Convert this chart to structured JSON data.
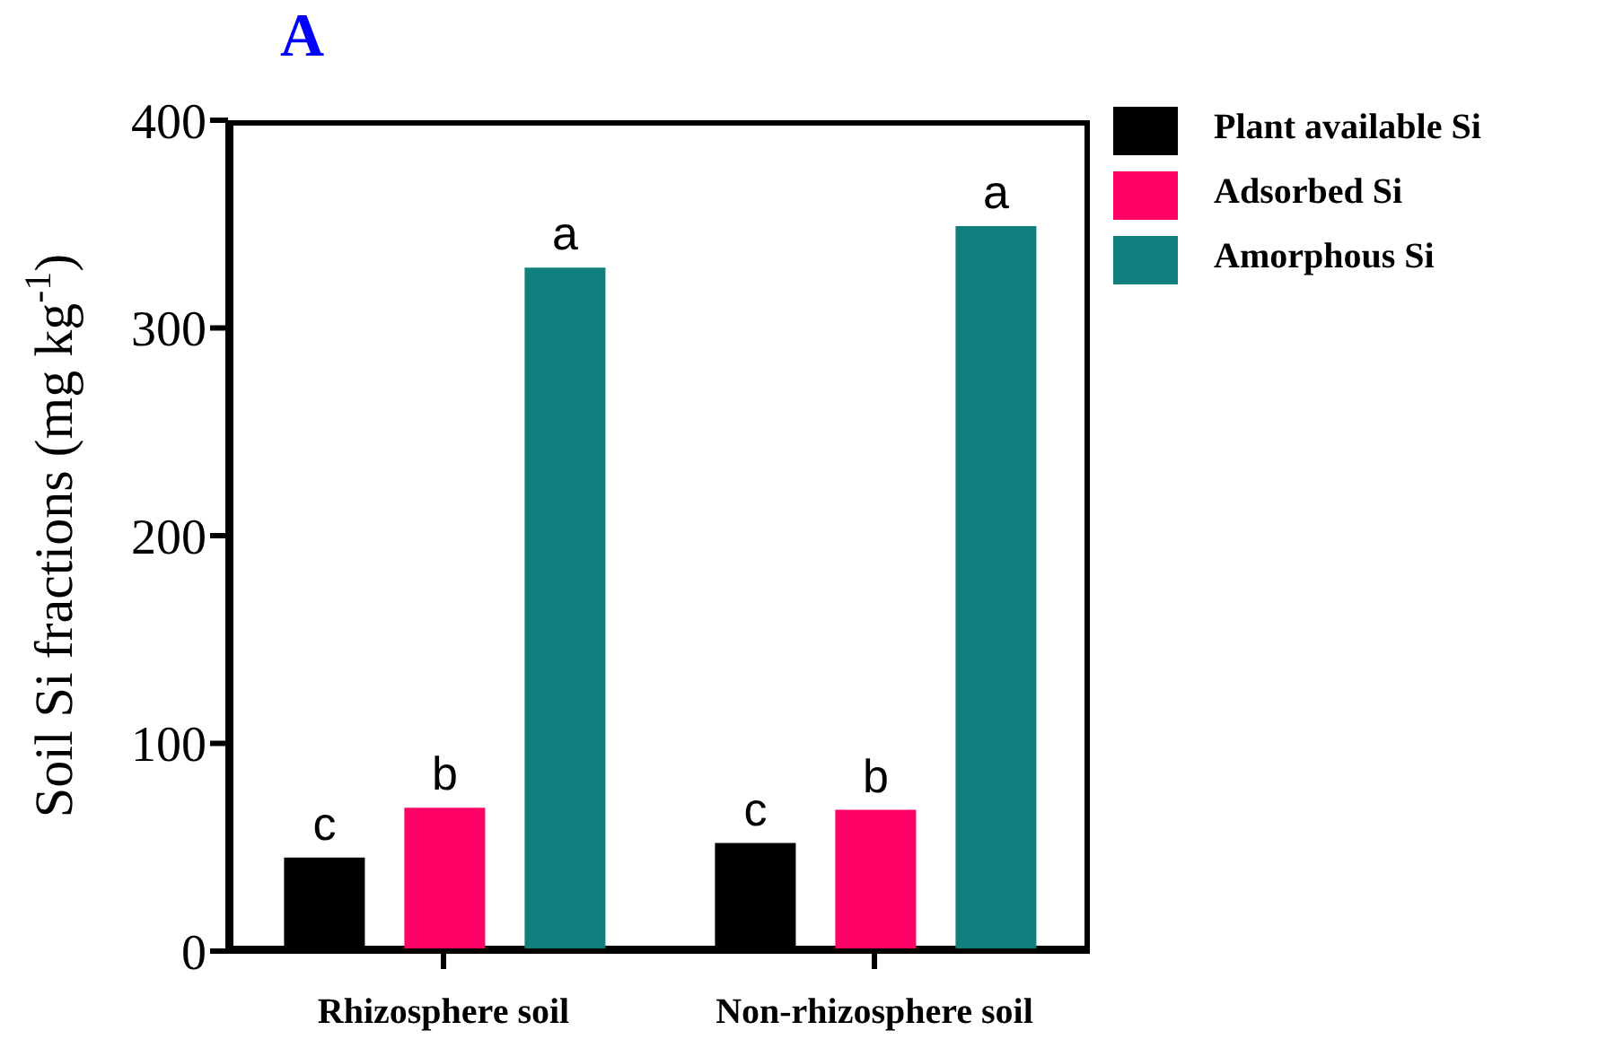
{
  "chart_data": {
    "type": "bar",
    "title": "A",
    "ylabel": "Soil Si fractions (mg kg$^{-1}$)",
    "categories": [
      "Rhizosphere soil",
      "Non-rhizosphere soil"
    ],
    "series": [
      {
        "name": "Plant available Si",
        "color": "#000000",
        "values": [
          45,
          52
        ]
      },
      {
        "name": "Adsorbed Si",
        "color": "#ff0066",
        "values": [
          69,
          68
        ]
      },
      {
        "name": "Amorphous Si",
        "color": "#117f7d",
        "values": [
          329,
          349
        ]
      }
    ],
    "ylim": [
      0,
      400
    ],
    "yticks": [
      0,
      100,
      200,
      300,
      400
    ],
    "grid": false,
    "legend": "top right",
    "annotations": [
      "c",
      "b",
      "a",
      "c",
      "b",
      "a"
    ]
  }
}
